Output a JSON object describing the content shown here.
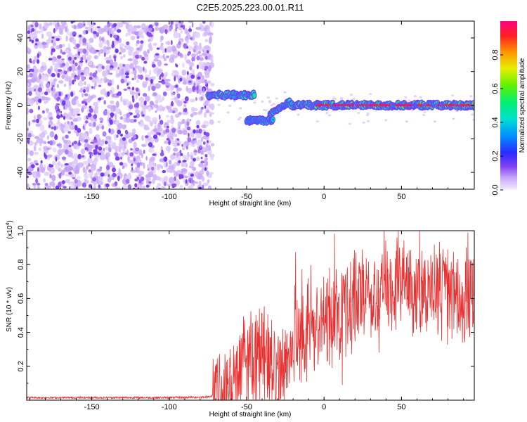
{
  "title": "C2E5.2025.223.00.01.R11",
  "chart_data": [
    {
      "type": "heatmap",
      "xlabel": "Height of straight line (km)",
      "ylabel": "Frequency (Hz)",
      "xlim": [
        -192,
        97
      ],
      "ylim": [
        -50,
        50
      ],
      "x_ticks": [
        -150,
        -100,
        -50,
        0,
        50
      ],
      "y_ticks": [
        -40,
        -20,
        0,
        20,
        40
      ],
      "colorbar": {
        "label": "Normalized spectral amplitude",
        "range": [
          0,
          1
        ],
        "ticks": [
          0.0,
          0.2,
          0.4,
          0.6,
          0.8
        ],
        "colormap": [
          "#e6d8f8",
          "#8a3cf0",
          "#2020ff",
          "#00c0ff",
          "#00f080",
          "#40f000",
          "#f0f000",
          "#ff8000",
          "#ff0000",
          "#ff0080"
        ]
      },
      "features": {
        "noise_region_x": [
          -192,
          -75
        ],
        "signal_track": [
          {
            "x_range": [
              -75,
              -45
            ],
            "freq": 6,
            "amplitude": 0.8
          },
          {
            "x_range": [
              -50,
              -33
            ],
            "freq": -9,
            "amplitude": 0.45
          },
          {
            "x_range": [
              -35,
              -22
            ],
            "freq": -5,
            "amplitude": 0.5
          },
          {
            "x_range": [
              -22,
              97
            ],
            "freq": 0,
            "amplitude": 0.9
          }
        ]
      }
    },
    {
      "type": "line",
      "xlabel": "Height of straight line (km)",
      "ylabel": "SNR (10 * v/v)",
      "y_multiplier": "(x10",
      "y_multiplier_exp": "4",
      "y_multiplier_close": ")",
      "xlim": [
        -192,
        97
      ],
      "ylim": [
        0,
        1.0
      ],
      "x_ticks": [
        -150,
        -100,
        -50,
        0,
        50
      ],
      "y_ticks": [
        0.2,
        0.4,
        0.6,
        0.8,
        1.0
      ],
      "series": [
        {
          "color": "#e83030",
          "x": [
            -192,
            -180,
            -160,
            -140,
            -120,
            -100,
            -80,
            -75,
            -70,
            -65,
            -60,
            -55,
            -50,
            -45,
            -40,
            -35,
            -30,
            -25,
            -20,
            -15,
            -10,
            -5,
            0,
            5,
            10,
            15,
            20,
            25,
            30,
            35,
            40,
            45,
            50,
            55,
            60,
            65,
            70,
            75,
            80,
            85,
            90,
            95,
            97
          ],
          "y": [
            0.015,
            0.015,
            0.015,
            0.015,
            0.015,
            0.015,
            0.018,
            0.02,
            0.03,
            0.05,
            0.08,
            0.18,
            0.25,
            0.3,
            0.32,
            0.2,
            0.15,
            0.25,
            0.32,
            0.36,
            0.4,
            0.44,
            0.46,
            0.5,
            0.52,
            0.55,
            0.58,
            0.62,
            0.64,
            0.65,
            0.66,
            0.67,
            0.67,
            0.68,
            0.68,
            0.66,
            0.64,
            0.63,
            0.62,
            0.6,
            0.6,
            0.62,
            0.62
          ]
        }
      ]
    }
  ]
}
